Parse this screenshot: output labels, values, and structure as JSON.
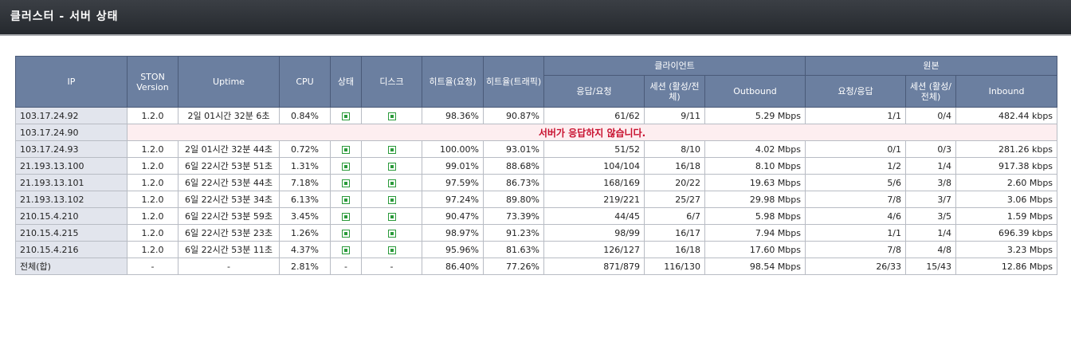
{
  "header": {
    "title": "클러스터 - 서버 상태"
  },
  "table": {
    "columns": {
      "ip": "IP",
      "version": "STON Version",
      "uptime": "Uptime",
      "cpu": "CPU",
      "status": "상태",
      "disk": "디스크",
      "hit_req": "히트율(요청)",
      "hit_traffic": "히트율(트래픽)",
      "client_group": "클라이언트",
      "client_resp": "응답/요청",
      "client_session": "세션 (활성/전체)",
      "client_outbound": "Outbound",
      "origin_group": "원본",
      "origin_req": "요청/응답",
      "origin_session": "세션 (활성/전체)",
      "origin_inbound": "Inbound"
    },
    "rows": [
      {
        "ip": "103.17.24.92",
        "version": "1.2.0",
        "uptime": "2일 01시간 32분 6초",
        "cpu": "0.84%",
        "status": "ok",
        "disk": "ok",
        "hit_req": "98.36%",
        "hit_traffic": "90.87%",
        "client_resp": "61/62",
        "client_session": "9/11",
        "client_outbound": "5.29 Mbps",
        "origin_req": "1/1",
        "origin_session": "0/4",
        "origin_inbound": "482.44 kbps"
      },
      {
        "ip": "103.17.24.90",
        "error": "서버가 응답하지 않습니다."
      },
      {
        "ip": "103.17.24.93",
        "version": "1.2.0",
        "uptime": "2일 01시간 32분 44초",
        "cpu": "0.72%",
        "status": "ok",
        "disk": "ok",
        "hit_req": "100.00%",
        "hit_traffic": "93.01%",
        "client_resp": "51/52",
        "client_session": "8/10",
        "client_outbound": "4.02 Mbps",
        "origin_req": "0/1",
        "origin_session": "0/3",
        "origin_inbound": "281.26 kbps"
      },
      {
        "ip": "21.193.13.100",
        "version": "1.2.0",
        "uptime": "6일 22시간 53분 51초",
        "cpu": "1.31%",
        "status": "ok",
        "disk": "ok",
        "hit_req": "99.01%",
        "hit_traffic": "88.68%",
        "client_resp": "104/104",
        "client_session": "16/18",
        "client_outbound": "8.10 Mbps",
        "origin_req": "1/2",
        "origin_session": "1/4",
        "origin_inbound": "917.38 kbps"
      },
      {
        "ip": "21.193.13.101",
        "version": "1.2.0",
        "uptime": "6일 22시간 53분 44초",
        "cpu": "7.18%",
        "status": "ok",
        "disk": "ok",
        "hit_req": "97.59%",
        "hit_traffic": "86.73%",
        "client_resp": "168/169",
        "client_session": "20/22",
        "client_outbound": "19.63 Mbps",
        "origin_req": "5/6",
        "origin_session": "3/8",
        "origin_inbound": "2.60 Mbps"
      },
      {
        "ip": "21.193.13.102",
        "version": "1.2.0",
        "uptime": "6일 22시간 53분 34초",
        "cpu": "6.13%",
        "status": "ok",
        "disk": "ok",
        "hit_req": "97.24%",
        "hit_traffic": "89.80%",
        "client_resp": "219/221",
        "client_session": "25/27",
        "client_outbound": "29.98 Mbps",
        "origin_req": "7/8",
        "origin_session": "3/7",
        "origin_inbound": "3.06 Mbps"
      },
      {
        "ip": "210.15.4.210",
        "version": "1.2.0",
        "uptime": "6일 22시간 53분 59초",
        "cpu": "3.45%",
        "status": "ok",
        "disk": "ok",
        "hit_req": "90.47%",
        "hit_traffic": "73.39%",
        "client_resp": "44/45",
        "client_session": "6/7",
        "client_outbound": "5.98 Mbps",
        "origin_req": "4/6",
        "origin_session": "3/5",
        "origin_inbound": "1.59 Mbps"
      },
      {
        "ip": "210.15.4.215",
        "version": "1.2.0",
        "uptime": "6일 22시간 53분 23초",
        "cpu": "1.26%",
        "status": "ok",
        "disk": "ok",
        "hit_req": "98.97%",
        "hit_traffic": "91.23%",
        "client_resp": "98/99",
        "client_session": "16/17",
        "client_outbound": "7.94 Mbps",
        "origin_req": "1/1",
        "origin_session": "1/4",
        "origin_inbound": "696.39 kbps"
      },
      {
        "ip": "210.15.4.216",
        "version": "1.2.0",
        "uptime": "6일 22시간 53분 11초",
        "cpu": "4.37%",
        "status": "ok",
        "disk": "ok",
        "hit_req": "95.96%",
        "hit_traffic": "81.63%",
        "client_resp": "126/127",
        "client_session": "16/18",
        "client_outbound": "17.60 Mbps",
        "origin_req": "7/8",
        "origin_session": "4/8",
        "origin_inbound": "3.23 Mbps"
      },
      {
        "ip": "전체(합)",
        "version": "-",
        "uptime": "-",
        "cpu": "2.81%",
        "status": "-",
        "disk": "-",
        "hit_req": "86.40%",
        "hit_traffic": "77.26%",
        "client_resp": "871/879",
        "client_session": "116/130",
        "client_outbound": "98.54 Mbps",
        "origin_req": "26/33",
        "origin_session": "15/43",
        "origin_inbound": "12.86 Mbps"
      }
    ]
  },
  "colors": {
    "header_bg": "#6b7fa0",
    "ok_icon": "#2a9a3a",
    "error_text": "#c8102e",
    "error_bg": "#fdeef0"
  }
}
